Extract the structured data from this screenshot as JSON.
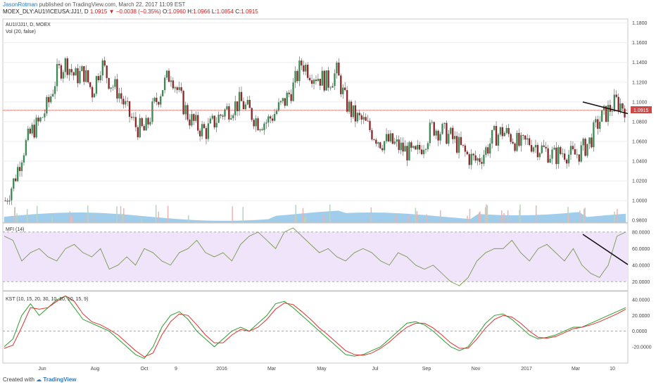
{
  "header": {
    "author": "JasonRotman",
    "published": "published on TradingView.com, March 22, 2017 11:09 EST",
    "symbol": "MOEX_DLY:AU1!/ICEUSA:JJ1!, D",
    "last": "1.0915",
    "arrow": "▼",
    "change": "−0.0038 (−0.35%)",
    "o_label": "O:",
    "o_value": "1.0960",
    "h_label": "H:",
    "h_value": "1.0966",
    "l_label": "L:",
    "l_value": "1.0854",
    "c_label": "C:",
    "c_value": "1.0915"
  },
  "price_panel": {
    "title": "AU1!/JJ1!, D, MOEX",
    "volume_label": "Vol (20, false)",
    "last_price_label": "1.0915"
  },
  "mfi_panel": {
    "title": "MFI (14)"
  },
  "kst_panel": {
    "title": "KST (10, 15, 20, 30, 10, 10, 10, 15, 9)"
  },
  "footer": {
    "created_with": "Created with",
    "brand": "TradingView"
  },
  "colors": {
    "up": "#3d8a55",
    "down": "#8b2a2a",
    "volume": "#8fc4e8",
    "mfi_line": "#6b8f3a",
    "mfi_band": "#f0e4fb",
    "kst": "#2e9e2e",
    "kst_signal": "#e03030",
    "last_price": "#d24646"
  },
  "chart_data": [
    {
      "type": "candlestick",
      "title": "AU1!/JJ1!, D, MOEX",
      "x_tick_labels": [
        "Jun",
        "Aug",
        "Oct",
        "9",
        "2016",
        "Mar",
        "May",
        "Jul",
        "Sep",
        "Nov",
        "2017",
        "Mar",
        "10"
      ],
      "y_tick_labels": [
        "1.1800",
        "1.1600",
        "1.1400",
        "1.1200",
        "1.1000",
        "1.0800",
        "1.0600",
        "1.0400",
        "1.0200",
        "1.0000",
        "0.9800"
      ],
      "ylim": [
        0.978,
        1.184
      ],
      "last_price": 1.0915,
      "close_trend": [
        1.0,
        1.02,
        1.05,
        1.07,
        1.08,
        1.1,
        1.13,
        1.14,
        1.125,
        1.13,
        1.11,
        1.14,
        1.12,
        1.11,
        1.09,
        1.075,
        1.07,
        1.095,
        1.115,
        1.13,
        1.105,
        1.085,
        1.075,
        1.07,
        1.08,
        1.09,
        1.095,
        1.1,
        1.09,
        1.08,
        1.08,
        1.09,
        1.1,
        1.115,
        1.14,
        1.13,
        1.125,
        1.12,
        1.13,
        1.1,
        1.085,
        1.08,
        1.07,
        1.06,
        1.06,
        1.055,
        1.05,
        1.045,
        1.06,
        1.075,
        1.07,
        1.065,
        1.055,
        1.045,
        1.04,
        1.05,
        1.065,
        1.07,
        1.065,
        1.055,
        1.06,
        1.055,
        1.05,
        1.045,
        1.05,
        1.045,
        1.05,
        1.06,
        1.08,
        1.09,
        1.1,
        1.095
      ],
      "trendline": [
        {
          "x_index": 0.935,
          "value": 1.1
        },
        {
          "x_index": 1.0,
          "value": 1.091
        }
      ]
    },
    {
      "type": "line",
      "title": "MFI (14)",
      "y_tick_labels": [
        "80.0000",
        "60.0000",
        "40.0000",
        "20.0000"
      ],
      "ylim": [
        10,
        90
      ],
      "band": [
        20,
        80
      ],
      "values": [
        75,
        70,
        45,
        55,
        60,
        50,
        45,
        60,
        65,
        55,
        50,
        60,
        35,
        40,
        50,
        40,
        60,
        55,
        45,
        40,
        55,
        60,
        70,
        55,
        50,
        55,
        45,
        65,
        75,
        80,
        70,
        60,
        80,
        85,
        75,
        65,
        55,
        60,
        50,
        45,
        55,
        60,
        55,
        45,
        40,
        55,
        50,
        40,
        35,
        40,
        30,
        20,
        15,
        25,
        45,
        55,
        60,
        60,
        70,
        55,
        45,
        60,
        65,
        55,
        45,
        60,
        40,
        30,
        25,
        40,
        75,
        80
      ]
    },
    {
      "type": "line",
      "title": "KST (10, 15, 20, 30, 10, 10, 10, 15, 9)",
      "y_tick_labels": [
        "40.0000",
        "20.0000",
        "0.0000",
        "-20.0000"
      ],
      "ylim": [
        -40,
        50
      ],
      "series": [
        {
          "values": [
            -20,
            -10,
            20,
            35,
            20,
            30,
            40,
            45,
            30,
            15,
            10,
            5,
            0,
            -10,
            -20,
            -30,
            -35,
            -20,
            5,
            20,
            25,
            15,
            0,
            -10,
            -20,
            -10,
            0,
            5,
            0,
            10,
            20,
            35,
            38,
            30,
            20,
            10,
            0,
            -10,
            -20,
            -30,
            -32,
            -30,
            -25,
            -20,
            -10,
            0,
            10,
            12,
            8,
            0,
            -10,
            -20,
            -25,
            -20,
            -5,
            10,
            20,
            22,
            15,
            5,
            -5,
            -10,
            -8,
            -5,
            0,
            5,
            5,
            10,
            15,
            20,
            25,
            30
          ]
        },
        {
          "values": [
            -22,
            -18,
            5,
            30,
            28,
            30,
            38,
            45,
            38,
            22,
            12,
            8,
            2,
            -5,
            -15,
            -25,
            -33,
            -28,
            -5,
            12,
            22,
            20,
            8,
            -5,
            -15,
            -15,
            -5,
            2,
            0,
            5,
            15,
            28,
            36,
            34,
            25,
            15,
            4,
            -5,
            -15,
            -25,
            -30,
            -31,
            -28,
            -22,
            -14,
            -4,
            5,
            10,
            10,
            4,
            -5,
            -15,
            -22,
            -22,
            -10,
            4,
            15,
            20,
            18,
            10,
            0,
            -8,
            -9,
            -7,
            -2,
            3,
            5,
            8,
            12,
            17,
            22,
            28
          ]
        }
      ]
    }
  ]
}
